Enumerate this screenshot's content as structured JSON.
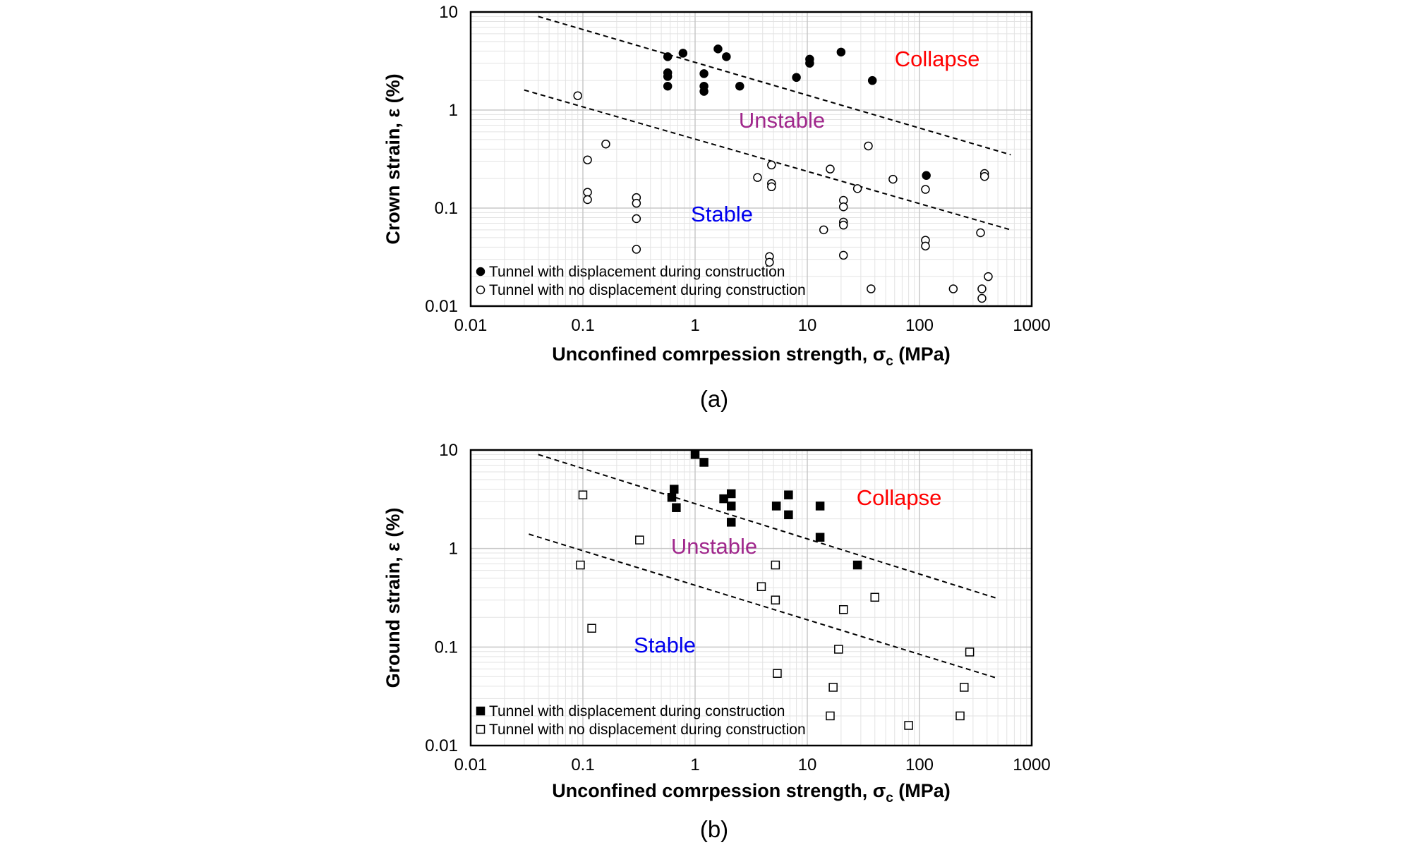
{
  "chart_data": [
    {
      "panel": "(a)",
      "type": "scatter",
      "xscale": "log",
      "yscale": "log",
      "xlim": [
        0.01,
        1000
      ],
      "ylim": [
        0.01,
        10
      ],
      "xticks": [
        "0.01",
        "0.1",
        "1",
        "10",
        "100",
        "1000"
      ],
      "yticks": [
        "0.01",
        "0.1",
        "1",
        "10"
      ],
      "xlabel": "Unconfined comrpession strength, σ",
      "xlabel_sub": "c",
      "xlabel_unit": " (MPa)",
      "ylabel": "Crown strain, ε (%)",
      "grid": true,
      "legend_position": "bottom-left",
      "regions": [
        {
          "label": "Collapse",
          "color": "#ff0000"
        },
        {
          "label": "Unstable",
          "color": "#a0288c"
        },
        {
          "label": "Stable",
          "color": "#0000ee"
        }
      ],
      "boundary_lines": [
        {
          "from": [
            0.04,
            9.0
          ],
          "to": [
            650,
            0.35
          ]
        },
        {
          "from": [
            0.03,
            1.6
          ],
          "to": [
            650,
            0.06
          ]
        }
      ],
      "series": [
        {
          "name": "Tunnel with displacement during construction",
          "marker": "filled-circle",
          "points": [
            [
              0.57,
              3.5
            ],
            [
              0.57,
              2.4
            ],
            [
              0.57,
              2.2
            ],
            [
              0.57,
              1.75
            ],
            [
              0.78,
              3.8
            ],
            [
              1.2,
              2.35
            ],
            [
              1.2,
              1.75
            ],
            [
              1.2,
              1.55
            ],
            [
              1.6,
              4.2
            ],
            [
              1.9,
              3.5
            ],
            [
              2.5,
              1.75
            ],
            [
              8,
              2.15
            ],
            [
              10.5,
              3.3
            ],
            [
              10.5,
              3.0
            ],
            [
              20,
              3.9
            ],
            [
              38,
              2.0
            ],
            [
              115,
              0.215
            ]
          ]
        },
        {
          "name": "Tunnel with no displacement during construction",
          "marker": "open-circle",
          "points": [
            [
              0.09,
              1.4
            ],
            [
              0.11,
              0.31
            ],
            [
              0.11,
              0.145
            ],
            [
              0.11,
              0.122
            ],
            [
              0.16,
              0.45
            ],
            [
              0.3,
              0.128
            ],
            [
              0.3,
              0.112
            ],
            [
              0.3,
              0.078
            ],
            [
              0.3,
              0.038
            ],
            [
              3.6,
              0.205
            ],
            [
              4.8,
              0.275
            ],
            [
              4.8,
              0.178
            ],
            [
              4.8,
              0.165
            ],
            [
              4.6,
              0.032
            ],
            [
              4.6,
              0.028
            ],
            [
              14,
              0.06
            ],
            [
              16,
              0.25
            ],
            [
              21,
              0.12
            ],
            [
              21,
              0.103
            ],
            [
              21,
              0.072
            ],
            [
              21,
              0.067
            ],
            [
              21,
              0.033
            ],
            [
              28,
              0.158
            ],
            [
              35,
              0.43
            ],
            [
              37,
              0.015
            ],
            [
              58,
              0.197
            ],
            [
              113,
              0.155
            ],
            [
              113,
              0.047
            ],
            [
              113,
              0.041
            ],
            [
              200,
              0.015
            ],
            [
              350,
              0.056
            ],
            [
              360,
              0.015
            ],
            [
              360,
              0.012
            ],
            [
              380,
              0.225
            ],
            [
              380,
              0.21
            ],
            [
              410,
              0.02
            ]
          ]
        }
      ]
    },
    {
      "panel": "(b)",
      "type": "scatter",
      "xscale": "log",
      "yscale": "log",
      "xlim": [
        0.01,
        1000
      ],
      "ylim": [
        0.01,
        10
      ],
      "xticks": [
        "0.01",
        "0.1",
        "1",
        "10",
        "100",
        "1000"
      ],
      "yticks": [
        "0.01",
        "0.1",
        "1",
        "10"
      ],
      "xlabel": "Unconfined comrpession strength, σ",
      "xlabel_sub": "c",
      "xlabel_unit": " (MPa)",
      "ylabel": "Ground strain, ε (%)",
      "grid": true,
      "legend_position": "bottom-left",
      "regions": [
        {
          "label": "Collapse",
          "color": "#ff0000"
        },
        {
          "label": "Unstable",
          "color": "#a0288c"
        },
        {
          "label": "Stable",
          "color": "#0000ee"
        }
      ],
      "boundary_lines": [
        {
          "from": [
            0.04,
            9.0
          ],
          "to": [
            500,
            0.31
          ]
        },
        {
          "from": [
            0.033,
            1.4
          ],
          "to": [
            500,
            0.048
          ]
        }
      ],
      "series": [
        {
          "name": "Tunnel with displacement during construction",
          "marker": "filled-square",
          "points": [
            [
              1.0,
              9.0
            ],
            [
              1.2,
              7.5
            ],
            [
              0.65,
              4.0
            ],
            [
              0.62,
              3.3
            ],
            [
              0.68,
              2.6
            ],
            [
              1.8,
              3.2
            ],
            [
              2.1,
              3.6
            ],
            [
              2.1,
              2.7
            ],
            [
              2.1,
              1.85
            ],
            [
              5.3,
              2.7
            ],
            [
              6.8,
              3.5
            ],
            [
              6.8,
              2.2
            ],
            [
              13,
              2.7
            ],
            [
              13,
              1.3
            ],
            [
              28,
              0.68
            ]
          ]
        },
        {
          "name": "Tunnel with no displacement during construction",
          "marker": "open-square",
          "points": [
            [
              0.1,
              3.5
            ],
            [
              0.095,
              0.68
            ],
            [
              0.12,
              0.155
            ],
            [
              0.32,
              1.22
            ],
            [
              3.9,
              0.41
            ],
            [
              5.2,
              0.3
            ],
            [
              5.2,
              0.68
            ],
            [
              5.4,
              0.054
            ],
            [
              17,
              0.039
            ],
            [
              16,
              0.02
            ],
            [
              19,
              0.095
            ],
            [
              21,
              0.24
            ],
            [
              40,
              0.32
            ],
            [
              80,
              0.016
            ],
            [
              230,
              0.02
            ],
            [
              250,
              0.039
            ],
            [
              280,
              0.089
            ]
          ]
        }
      ]
    }
  ],
  "captions": [
    "(a)",
    "(b)"
  ]
}
